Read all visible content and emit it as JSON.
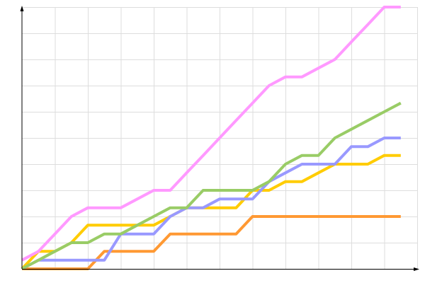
{
  "chart_data": {
    "type": "line",
    "title": "",
    "xlabel": "",
    "ylabel": "",
    "xlim": [
      0,
      24
    ],
    "ylim": [
      0,
      30
    ],
    "grid": true,
    "legend": "none",
    "x": [
      0,
      1,
      2,
      3,
      4,
      5,
      6,
      7,
      8,
      9,
      10,
      11,
      12,
      13,
      14,
      15,
      16,
      17,
      18,
      19,
      20,
      21,
      22,
      23
    ],
    "series": [
      {
        "color": "#ff99ff",
        "values": [
          1,
          2,
          4,
          6,
          7,
          7,
          7,
          8,
          9,
          9,
          11,
          13,
          15,
          17,
          19,
          21,
          22,
          22,
          23,
          24,
          26,
          28,
          30,
          30
        ]
      },
      {
        "color": "#99cc66",
        "values": [
          0,
          1,
          2,
          3,
          3,
          4,
          4,
          5,
          6,
          7,
          7,
          9,
          9,
          9,
          9,
          10,
          12,
          13,
          13,
          15,
          16,
          17,
          18,
          19
        ]
      },
      {
        "color": "#9999ff",
        "values": [
          0,
          1,
          1,
          1,
          1,
          1,
          4,
          4,
          4,
          6,
          7,
          7,
          8,
          8,
          8,
          10,
          11,
          12,
          12,
          12,
          14,
          14,
          15,
          15
        ]
      },
      {
        "color": "#ffcc00",
        "values": [
          0,
          2,
          2,
          3,
          5,
          5,
          5,
          5,
          5,
          6,
          7,
          7,
          7,
          7,
          9,
          9,
          10,
          10,
          11,
          12,
          12,
          12,
          13,
          13
        ]
      },
      {
        "color": "#ff9933",
        "values": [
          0,
          0,
          0,
          0,
          0,
          2,
          2,
          2,
          2,
          4,
          4,
          4,
          4,
          4,
          6,
          6,
          6,
          6,
          6,
          6,
          6,
          6,
          6,
          6
        ]
      }
    ]
  }
}
